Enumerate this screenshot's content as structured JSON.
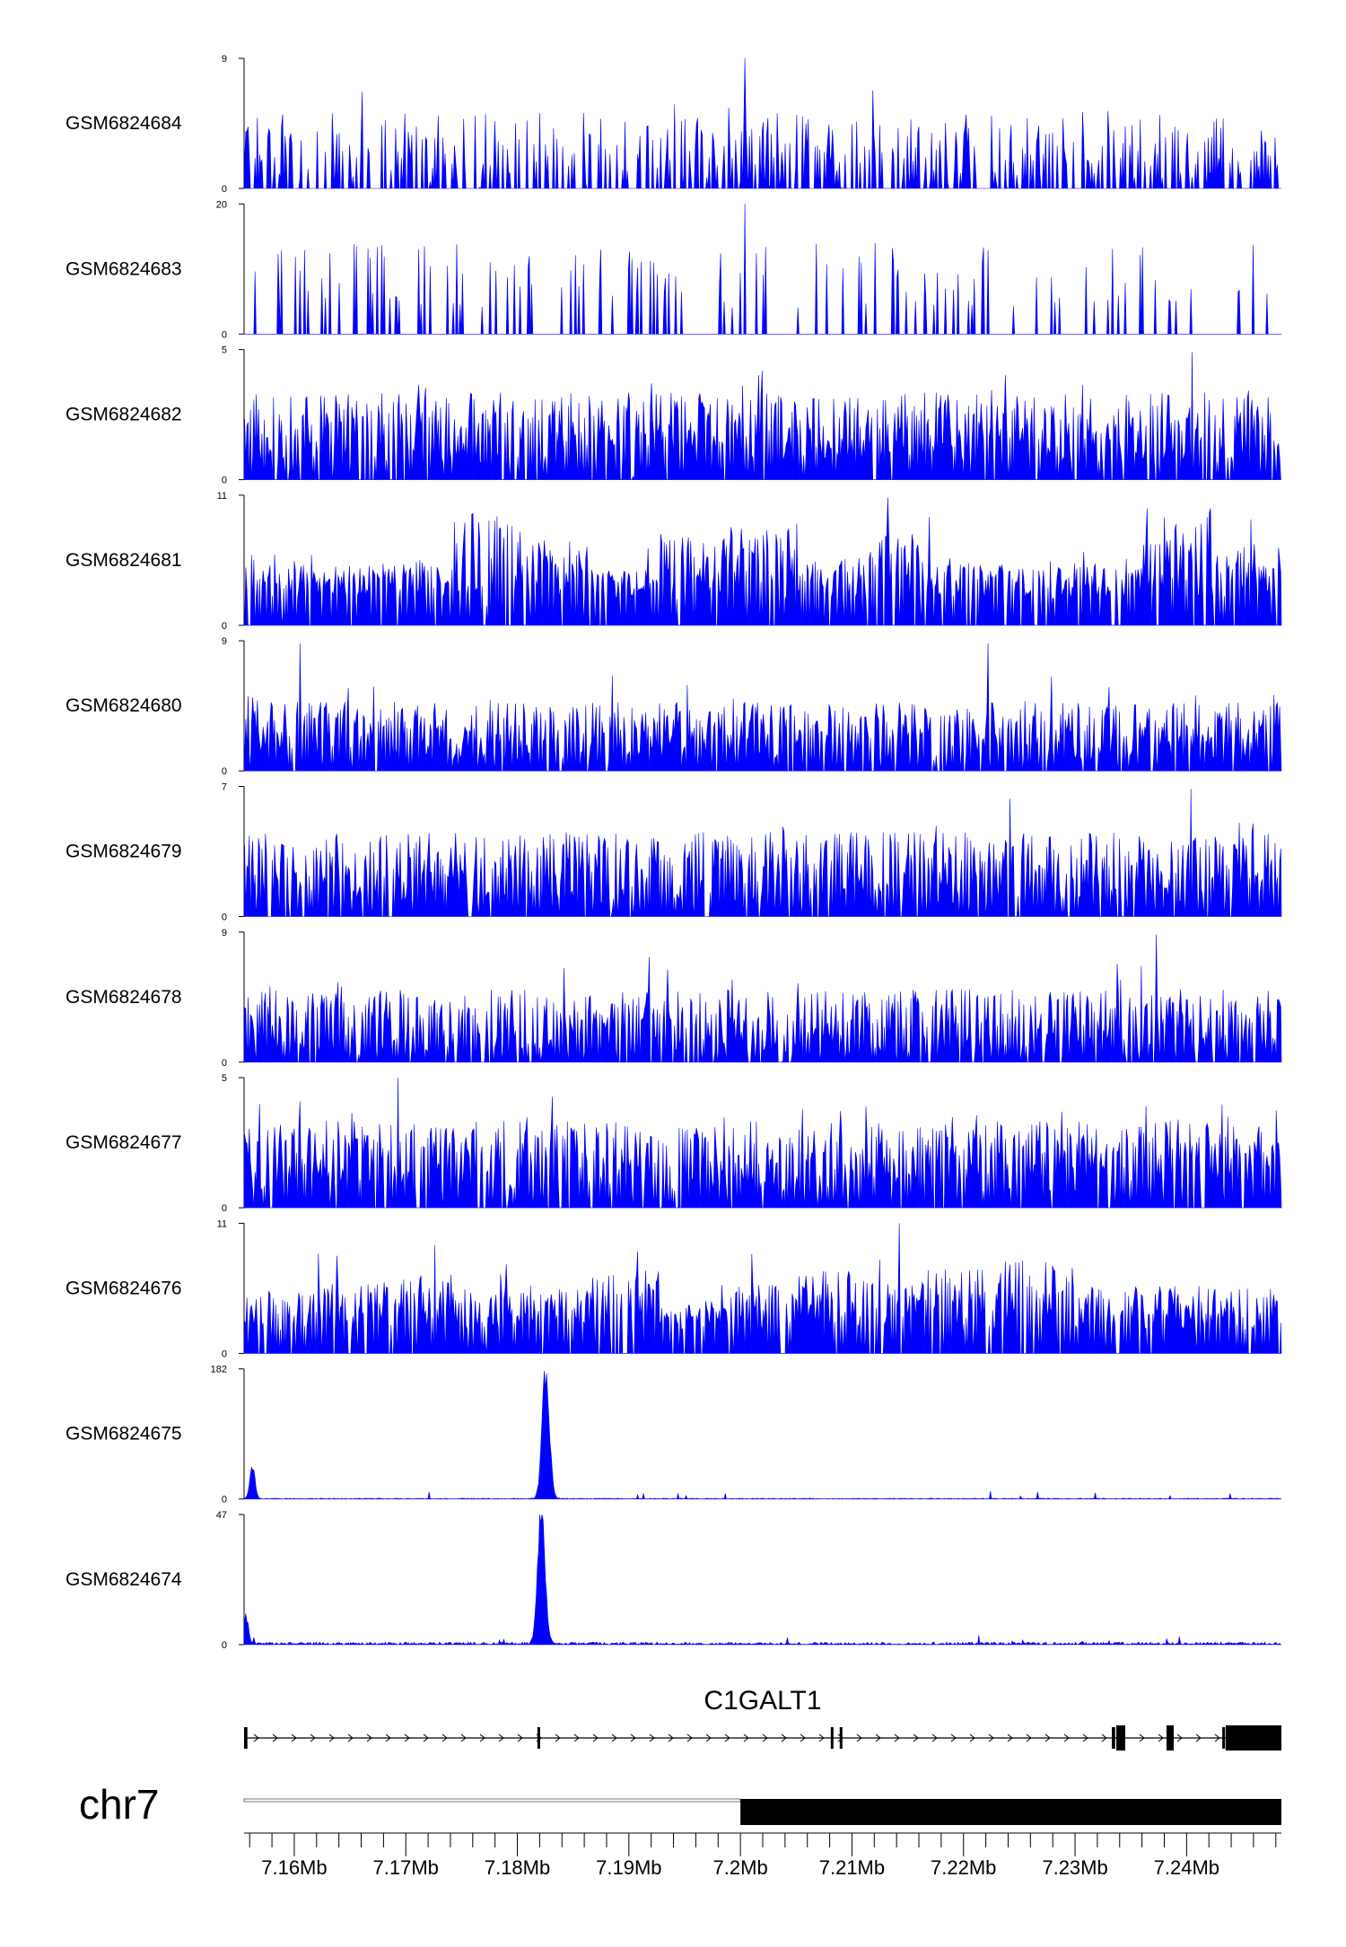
{
  "chart_data": {
    "type": "area",
    "title": "",
    "xlabel": "",
    "ylabel": "",
    "color": "#0000ff",
    "x_range_mb": [
      7.1555,
      7.2485
    ],
    "tracks": [
      {
        "name": "GSM6824684",
        "ymax": "9",
        "ymin": "0",
        "max": 9,
        "profile": "sparse",
        "seed": 11,
        "base": 0.08,
        "peak": 0.5,
        "spikes": [
          [
            7.2003,
            1.0
          ]
        ]
      },
      {
        "name": "GSM6824683",
        "ymax": "20",
        "ymin": "0",
        "max": 20,
        "profile": "verysparse",
        "seed": 23,
        "base": 0.0,
        "peak": 0.55,
        "spikes": [
          [
            7.2003,
            1.0
          ]
        ]
      },
      {
        "name": "GSM6824682",
        "ymax": "5",
        "ymin": "0",
        "max": 5,
        "profile": "dense",
        "seed": 37,
        "base": 0.12,
        "peak": 0.55,
        "spikes": [
          [
            7.2404,
            0.98
          ]
        ]
      },
      {
        "name": "GSM6824681",
        "ymax": "11",
        "ymin": "0",
        "max": 11,
        "profile": "blocks",
        "seed": 41,
        "base": 0.2,
        "peak": 0.55,
        "spikes": [
          [
            7.2132,
            0.98
          ]
        ]
      },
      {
        "name": "GSM6824680",
        "ymax": "9",
        "ymin": "0",
        "max": 9,
        "profile": "dense",
        "seed": 53,
        "base": 0.08,
        "peak": 0.45,
        "spikes": [
          [
            7.1605,
            0.98
          ],
          [
            7.2222,
            0.98
          ]
        ]
      },
      {
        "name": "GSM6824679",
        "ymax": "7",
        "ymin": "0",
        "max": 7,
        "profile": "dense",
        "seed": 61,
        "base": 0.1,
        "peak": 0.55,
        "spikes": [
          [
            7.2403,
            0.98
          ]
        ]
      },
      {
        "name": "GSM6824678",
        "ymax": "9",
        "ymin": "0",
        "max": 9,
        "profile": "dense",
        "seed": 71,
        "base": 0.06,
        "peak": 0.5,
        "spikes": [
          [
            7.2372,
            0.98
          ]
        ]
      },
      {
        "name": "GSM6824677",
        "ymax": "5",
        "ymin": "0",
        "max": 5,
        "profile": "dense",
        "seed": 83,
        "base": 0.12,
        "peak": 0.55,
        "spikes": [
          [
            7.1692,
            1.0
          ]
        ]
      },
      {
        "name": "GSM6824676",
        "ymax": "11",
        "ymin": "0",
        "max": 11,
        "profile": "blocks",
        "seed": 97,
        "base": 0.18,
        "peak": 0.45,
        "spikes": [
          [
            7.2142,
            1.0
          ]
        ]
      },
      {
        "name": "GSM6824675",
        "ymax": "182",
        "ymin": "0",
        "max": 182,
        "profile": "peak",
        "seed": 101,
        "base": 0.005,
        "peak": 0.0,
        "spikes": [
          [
            7.1562,
            0.26
          ],
          [
            7.1825,
            0.96
          ]
        ]
      },
      {
        "name": "GSM6824674",
        "ymax": "47",
        "ymin": "0",
        "max": 47,
        "profile": "peak",
        "seed": 109,
        "base": 0.015,
        "peak": 0.0,
        "spikes": [
          [
            7.1556,
            0.22
          ],
          [
            7.1821,
            0.96
          ]
        ]
      }
    ],
    "gene": {
      "name": "C1GALT1",
      "start_mb": 7.1555,
      "end_mb": 7.2485,
      "exons": [
        [
          7.1555,
          7.1558,
          "thin"
        ],
        [
          7.1818,
          7.182,
          "thin"
        ],
        [
          7.2081,
          7.2083,
          "thin"
        ],
        [
          7.2089,
          7.2091,
          "thin"
        ],
        [
          7.2333,
          7.2336,
          "thin"
        ],
        [
          7.2337,
          7.2345,
          "thick"
        ],
        [
          7.2382,
          7.2388,
          "thick"
        ],
        [
          7.2432,
          7.2434,
          "thin"
        ],
        [
          7.2435,
          7.2485,
          "thick"
        ]
      ]
    },
    "chromosome": {
      "name": "chr7",
      "thin_start_mb": 7.1555,
      "thin_end_mb": 7.2,
      "thick_start_mb": 7.2,
      "thick_end_mb": 7.2485
    },
    "axis": {
      "ticks_mb": [
        7.16,
        7.17,
        7.18,
        7.19,
        7.2,
        7.21,
        7.22,
        7.23,
        7.24
      ],
      "tick_labels": [
        "7.16Mb",
        "7.17Mb",
        "7.18Mb",
        "7.19Mb",
        "7.2Mb",
        "7.21Mb",
        "7.22Mb",
        "7.23Mb",
        "7.24Mb"
      ],
      "minor_step_mb": 0.002
    }
  }
}
